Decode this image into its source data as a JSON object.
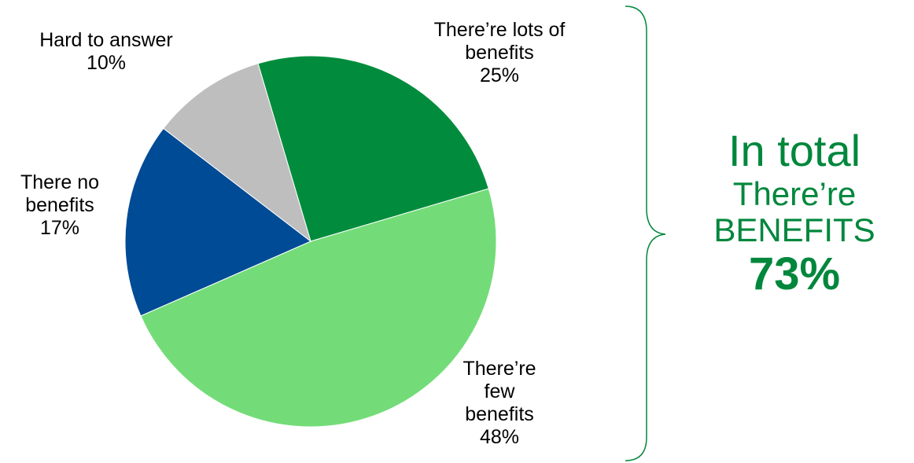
{
  "chart_data": {
    "type": "pie",
    "slices": [
      {
        "label_lines": [
          "There’re lots of",
          "benefits",
          "25%"
        ],
        "value": 25,
        "color": "#008C3C"
      },
      {
        "label_lines": [
          "There’re",
          "few",
          "benefits",
          "48%"
        ],
        "value": 48,
        "color": "#73DC78"
      },
      {
        "label_lines": [
          "There no",
          "benefits",
          "17%"
        ],
        "value": 17,
        "color": "#004B96"
      },
      {
        "label_lines": [
          "Hard to answer",
          "10%"
        ],
        "value": 10,
        "color": "#BEBEBE"
      }
    ]
  },
  "summary": {
    "line1": "In total",
    "line2": "There’re",
    "line3": "BENEFITS",
    "line4": "73%",
    "color": "#00873C"
  },
  "brace_color": "#00873C"
}
